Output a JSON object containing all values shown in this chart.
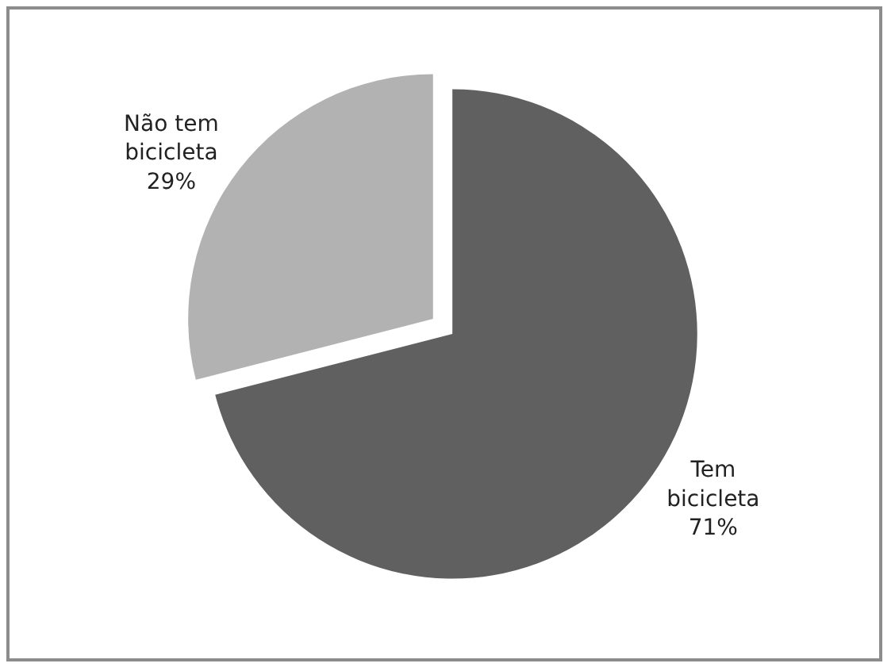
{
  "chart_data": {
    "type": "pie",
    "categories": [
      "Tem bicicleta",
      "Não tem bicicleta"
    ],
    "values": [
      71,
      29
    ],
    "colors": [
      "#606060",
      "#b2b2b2"
    ],
    "value_labels": [
      "71%",
      "29%"
    ],
    "legend": false
  }
}
